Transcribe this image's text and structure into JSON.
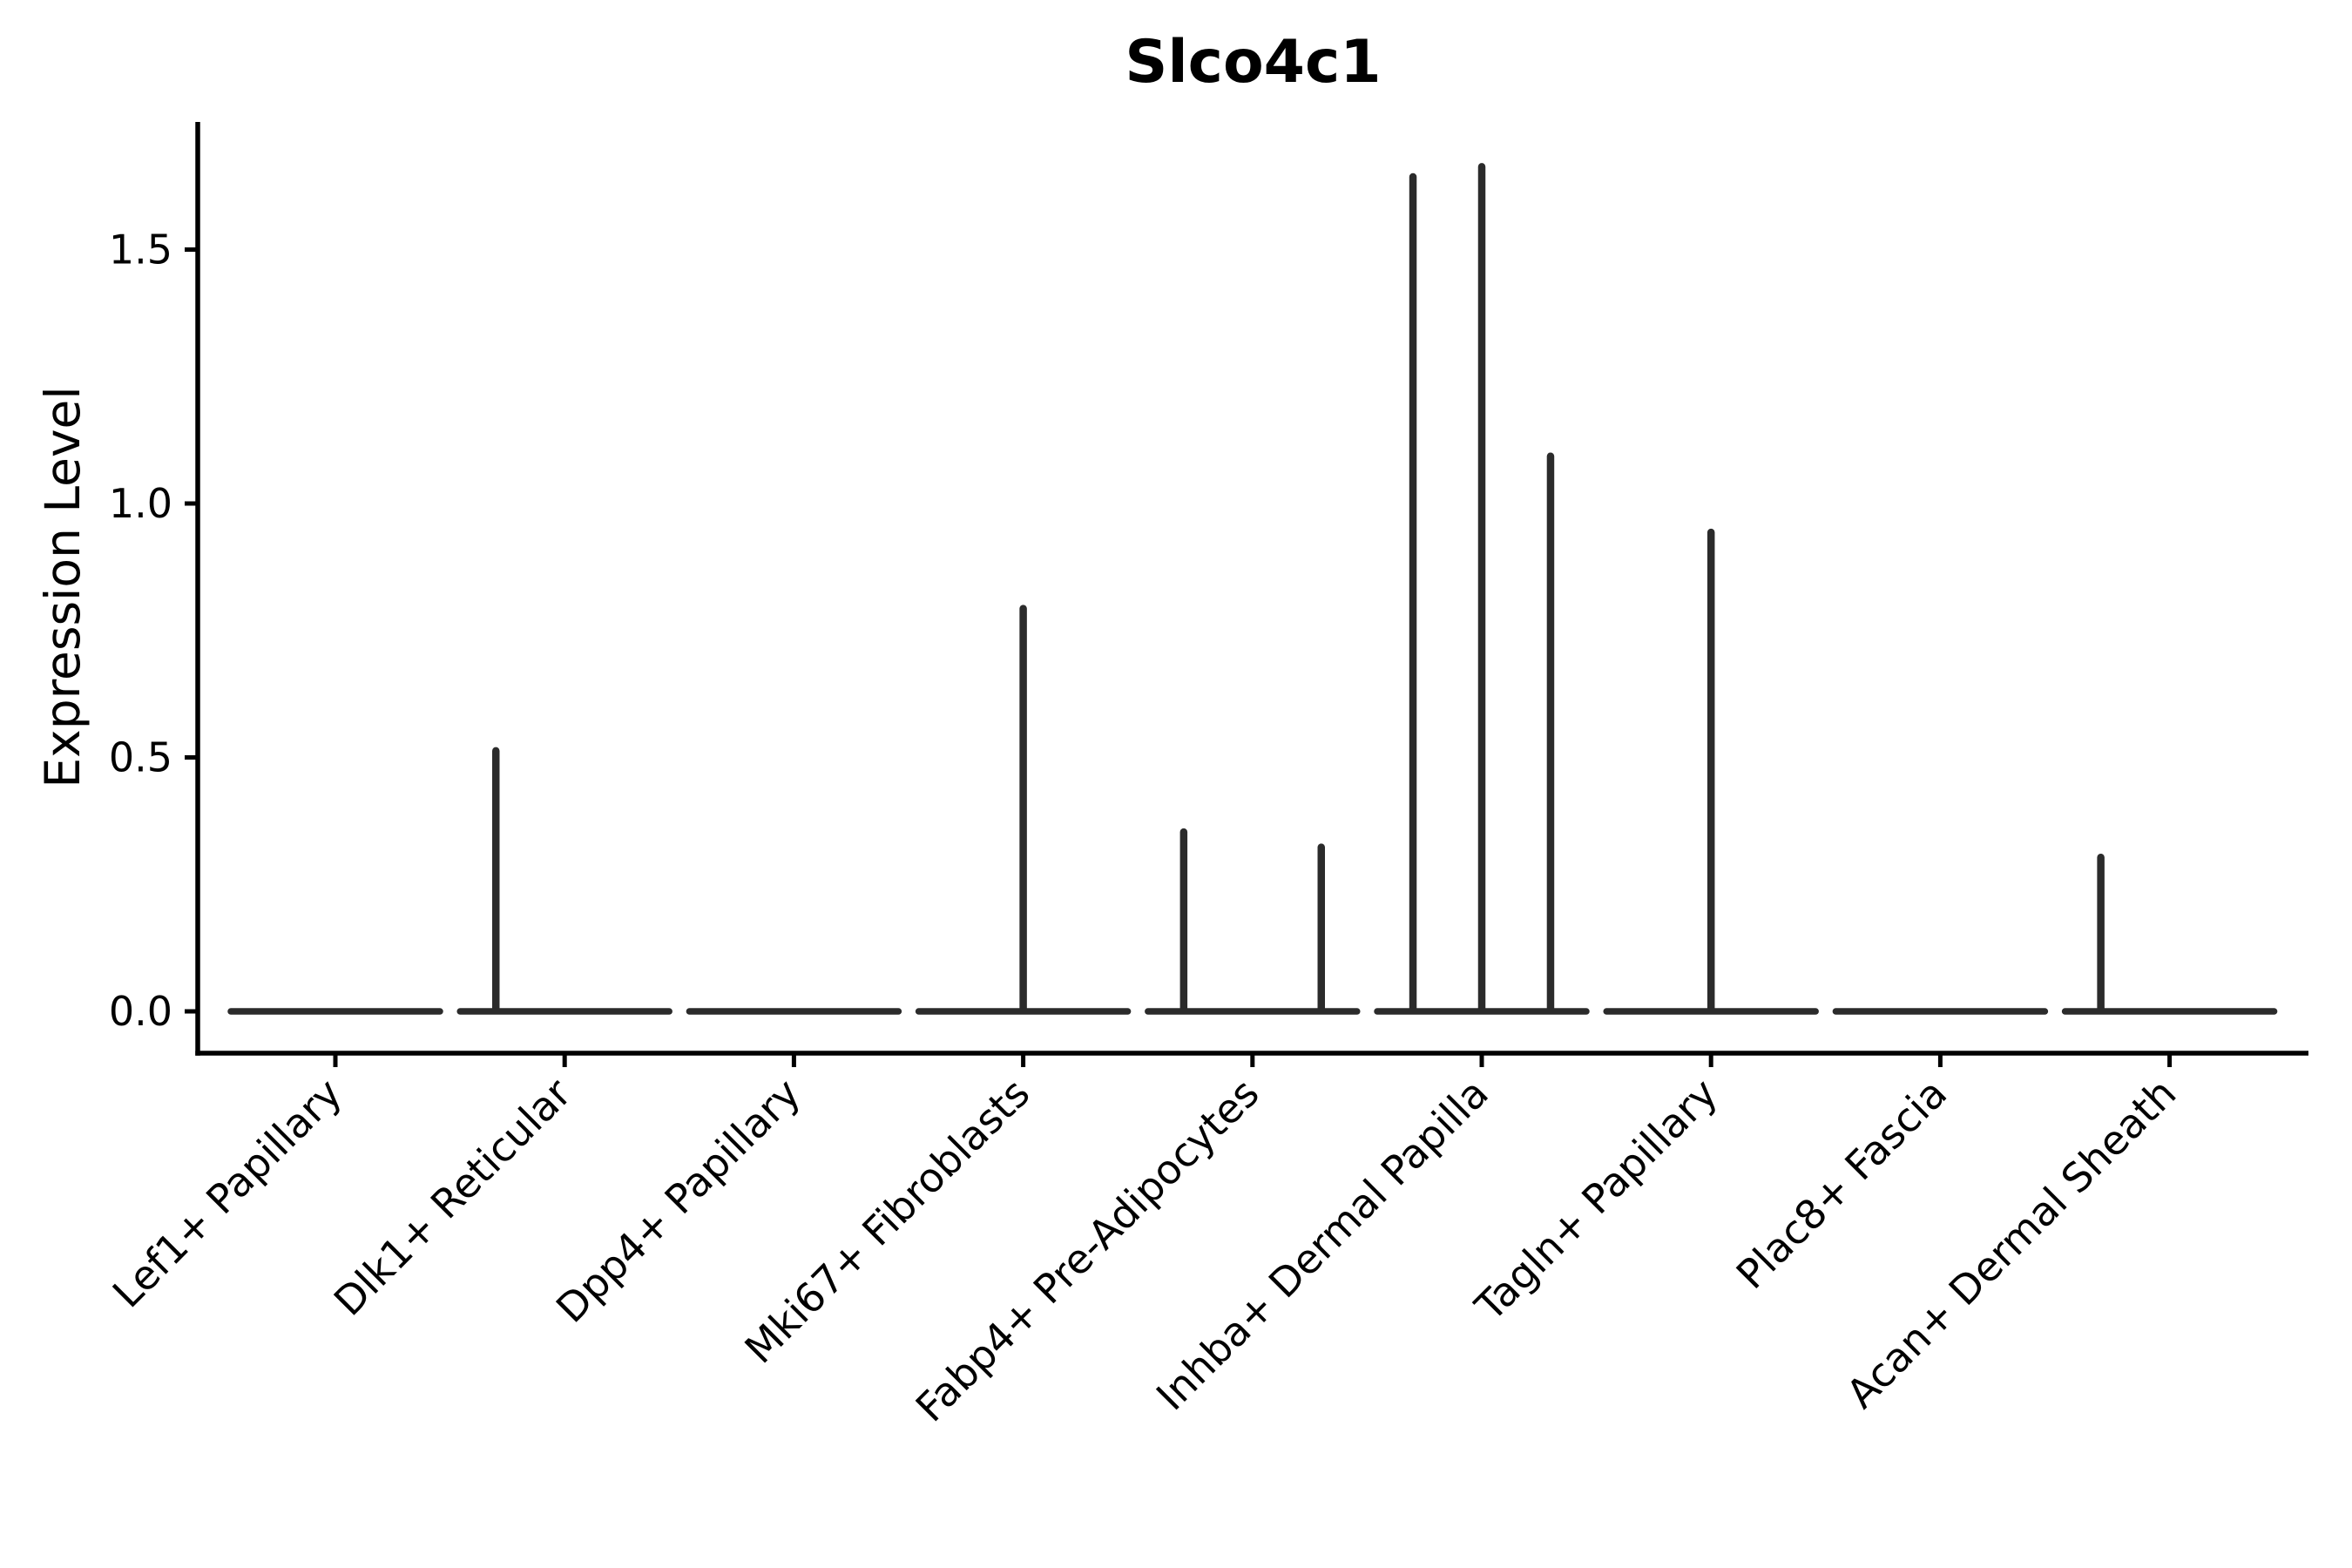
{
  "figure": {
    "title": "Slco4c1",
    "ylabel": "Expression Level"
  },
  "chart_data": {
    "type": "violin",
    "title": "Slco4c1",
    "xlabel": "",
    "ylabel": "Expression Level",
    "grid": false,
    "legend": "none",
    "background": "#ffffff",
    "y_ticks": [
      "0.0",
      "0.5",
      "1.0",
      "1.5"
    ],
    "y_tick_values": [
      0.0,
      0.5,
      1.0,
      1.5
    ],
    "ylim": [
      -0.08,
      1.75
    ],
    "categories": [
      "Lef1+ Papillary",
      "Dlk1+ Reticular",
      "Dpp4+ Papillary",
      "Mki67+ Fibroblasts",
      "Fabp4+ Pre-Adipocytes",
      "Inhba+ Dermal Papilla",
      "Tagln+ Papillary",
      "Plac8+ Fascia",
      "Acan+ Dermal Sheath"
    ],
    "violins": [
      {
        "category": "Lef1+ Papillary",
        "baseline_value": 0.0,
        "spikes": []
      },
      {
        "category": "Dlk1+ Reticular",
        "baseline_value": 0.0,
        "spikes": [
          {
            "position": "left",
            "offset": -0.3,
            "max": 0.52
          }
        ]
      },
      {
        "category": "Dpp4+ Papillary",
        "baseline_value": 0.0,
        "spikes": []
      },
      {
        "category": "Mki67+ Fibroblasts",
        "baseline_value": 0.0,
        "spikes": [
          {
            "position": "center",
            "offset": 0.0,
            "max": 0.8
          }
        ]
      },
      {
        "category": "Fabp4+ Pre-Adipocytes",
        "baseline_value": 0.0,
        "spikes": [
          {
            "position": "left",
            "offset": -0.3,
            "max": 0.36
          },
          {
            "position": "right",
            "offset": 0.3,
            "max": 0.33
          }
        ]
      },
      {
        "category": "Inhba+ Dermal Papilla",
        "baseline_value": 0.0,
        "spikes": [
          {
            "position": "left",
            "offset": -0.3,
            "max": 1.65
          },
          {
            "position": "center",
            "offset": 0.0,
            "max": 1.67
          },
          {
            "position": "right",
            "offset": 0.3,
            "max": 1.1
          }
        ]
      },
      {
        "category": "Tagln+ Papillary",
        "baseline_value": 0.0,
        "spikes": [
          {
            "position": "center",
            "offset": 0.0,
            "max": 0.95
          }
        ]
      },
      {
        "category": "Plac8+ Fascia",
        "baseline_value": 0.0,
        "spikes": []
      },
      {
        "category": "Acan+ Dermal Sheath",
        "baseline_value": 0.0,
        "spikes": [
          {
            "position": "left",
            "offset": -0.3,
            "max": 0.31
          }
        ]
      }
    ],
    "violin_body": {
      "half_width_ratio": 0.456,
      "baseline_value": 0.0
    },
    "colors": {
      "violin": "#2b2b2b",
      "axis": "#000000",
      "text": "#000000",
      "background": "#ffffff"
    }
  }
}
